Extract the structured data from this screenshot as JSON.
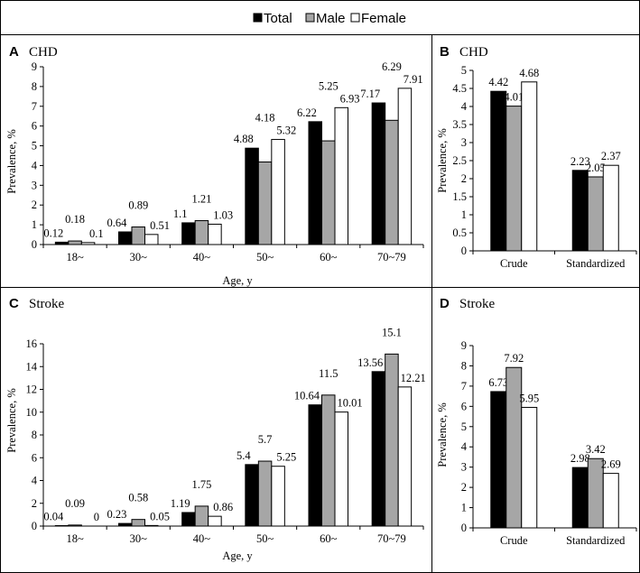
{
  "legend": {
    "entries": [
      {
        "name": "Total",
        "color": "#000000"
      },
      {
        "name": "Male",
        "color": "#a6a6a6"
      },
      {
        "name": "Female",
        "color": "#ffffff"
      }
    ]
  },
  "chart_data": [
    {
      "id": "A",
      "panel_letter": "A",
      "title": "CHD",
      "type": "bar",
      "categories": [
        "18~",
        "30~",
        "40~",
        "50~",
        "60~",
        "70~79"
      ],
      "series": [
        {
          "name": "Total",
          "values": [
            0.12,
            0.64,
            1.1,
            4.88,
            6.22,
            7.17
          ]
        },
        {
          "name": "Male",
          "values": [
            0.18,
            0.89,
            1.21,
            4.18,
            5.25,
            6.29
          ]
        },
        {
          "name": "Female",
          "values": [
            0.1,
            0.51,
            1.03,
            5.32,
            6.93,
            7.91
          ]
        }
      ],
      "data_labels": [
        [
          "0.12",
          "0.64",
          "1.1",
          "4.88",
          "6.22",
          "7.17"
        ],
        [
          "0.18",
          "0.89",
          "1.21",
          "4.18",
          "5.25",
          "6.29"
        ],
        [
          "0.1",
          "0.51",
          "1.03",
          "5.32",
          "6.93",
          "7.91"
        ]
      ],
      "xlabel": "Age, y",
      "ylabel": "Prevalence, %",
      "ylim": [
        0,
        9
      ],
      "yticks": [
        "0",
        "1",
        "2",
        "3",
        "4",
        "5",
        "6",
        "7",
        "8",
        "9"
      ]
    },
    {
      "id": "B",
      "panel_letter": "B",
      "title": "CHD",
      "type": "bar",
      "categories": [
        "Crude",
        "Standardized"
      ],
      "series": [
        {
          "name": "Total",
          "values": [
            4.42,
            2.23
          ]
        },
        {
          "name": "Male",
          "values": [
            4.01,
            2.05
          ]
        },
        {
          "name": "Female",
          "values": [
            4.68,
            2.37
          ]
        }
      ],
      "data_labels": [
        [
          "4.42",
          "2.23"
        ],
        [
          "4.01",
          "2.05"
        ],
        [
          "4.68",
          "2.37"
        ]
      ],
      "xlabel": "",
      "ylabel": "Prevalence, %",
      "ylim": [
        0,
        5
      ],
      "yticks": [
        "0",
        "0.5",
        "1",
        "1.5",
        "2",
        "2.5",
        "3",
        "3.5",
        "4",
        "4.5",
        "5"
      ]
    },
    {
      "id": "C",
      "panel_letter": "C",
      "title": "Stroke",
      "type": "bar",
      "categories": [
        "18~",
        "30~",
        "40~",
        "50~",
        "60~",
        "70~79"
      ],
      "series": [
        {
          "name": "Total",
          "values": [
            0.04,
            0.23,
            1.19,
            5.4,
            10.64,
            13.56
          ]
        },
        {
          "name": "Male",
          "values": [
            0.09,
            0.58,
            1.75,
            5.7,
            11.5,
            15.1
          ]
        },
        {
          "name": "Female",
          "values": [
            0,
            0.05,
            0.86,
            5.25,
            10.01,
            12.21
          ]
        }
      ],
      "data_labels": [
        [
          "0.04",
          "0.23",
          "1.19",
          "5.4",
          "10.64",
          "13.56"
        ],
        [
          "0.09",
          "0.58",
          "1.75",
          "5.7",
          "11.5",
          "15.1"
        ],
        [
          "0",
          "0.05",
          "0.86",
          "5.25",
          "10.01",
          "12.21"
        ]
      ],
      "xlabel": "Age, y",
      "ylabel": "Prevalence, %",
      "ylim": [
        0,
        16
      ],
      "yticks": [
        "0",
        "2",
        "4",
        "6",
        "8",
        "10",
        "12",
        "14",
        "16"
      ]
    },
    {
      "id": "D",
      "panel_letter": "D",
      "title": "Stroke",
      "type": "bar",
      "categories": [
        "Crude",
        "Standardized"
      ],
      "series": [
        {
          "name": "Total",
          "values": [
            6.73,
            2.98
          ]
        },
        {
          "name": "Male",
          "values": [
            7.92,
            3.42
          ]
        },
        {
          "name": "Female",
          "values": [
            5.95,
            2.69
          ]
        }
      ],
      "data_labels": [
        [
          "6.73",
          "2.98"
        ],
        [
          "7.92",
          "3.42"
        ],
        [
          "5.95",
          "2.69"
        ]
      ],
      "xlabel": "",
      "ylabel": "Prevalence, %",
      "ylim": [
        0,
        9
      ],
      "yticks": [
        "0",
        "1",
        "2",
        "3",
        "4",
        "5",
        "6",
        "7",
        "8",
        "9"
      ]
    }
  ]
}
